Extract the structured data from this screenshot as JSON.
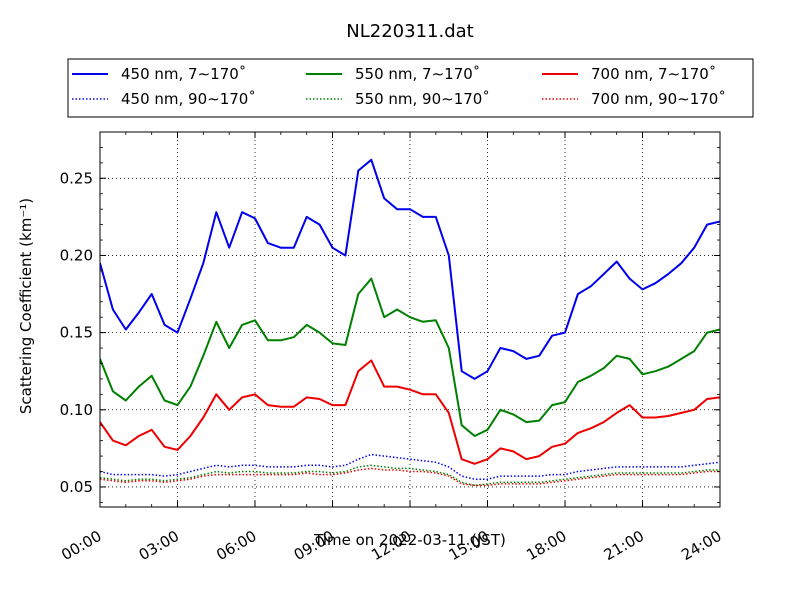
{
  "chart_data": {
    "type": "line",
    "title": "NL220311.dat",
    "xlabel": "Time on 2022-03-11 (JST)",
    "ylabel": "Scattering Coefficient (km⁻¹)",
    "xlim": [
      0,
      24
    ],
    "ylim": [
      0.037,
      0.28
    ],
    "grid": true,
    "legend_position": "top, above plot, 3 columns",
    "x_ticks": [
      0,
      3,
      6,
      9,
      12,
      15,
      18,
      21,
      24
    ],
    "x_tick_labels": [
      "00:00",
      "03:00",
      "06:00",
      "09:00",
      "12:00",
      "15:00",
      "18:00",
      "21:00",
      "24:00"
    ],
    "y_ticks": [
      0.05,
      0.1,
      0.15,
      0.2,
      0.25
    ],
    "y_tick_labels": [
      "0.05",
      "0.10",
      "0.15",
      "0.20",
      "0.25"
    ],
    "x": [
      0,
      0.5,
      1,
      1.5,
      2,
      2.5,
      3,
      3.5,
      4,
      4.5,
      5,
      5.5,
      6,
      6.5,
      7,
      7.5,
      8,
      8.5,
      9,
      9.5,
      10,
      10.5,
      11,
      11.5,
      12,
      12.5,
      13,
      13.5,
      14,
      14.5,
      15,
      15.5,
      16,
      16.5,
      17,
      17.5,
      18,
      18.5,
      19,
      19.5,
      20,
      20.5,
      21,
      21.5,
      22,
      22.5,
      23,
      23.5,
      24
    ],
    "series": [
      {
        "name": "450 nm, 7∼170˚",
        "color": "#0000ee",
        "style": "solid",
        "values": [
          0.195,
          0.165,
          0.152,
          0.163,
          0.175,
          0.155,
          0.15,
          0.172,
          0.195,
          0.228,
          0.205,
          0.228,
          0.224,
          0.208,
          0.205,
          0.205,
          0.225,
          0.22,
          0.205,
          0.2,
          0.255,
          0.262,
          0.237,
          0.23,
          0.23,
          0.225,
          0.225,
          0.2,
          0.125,
          0.12,
          0.125,
          0.14,
          0.138,
          0.133,
          0.135,
          0.148,
          0.15,
          0.175,
          0.18,
          0.188,
          0.196,
          0.185,
          0.178,
          0.182,
          0.188,
          0.195,
          0.205,
          0.22,
          0.222
        ]
      },
      {
        "name": "450 nm, 90∼170˚",
        "color": "#0000ee",
        "style": "dotted",
        "values": [
          0.06,
          0.058,
          0.058,
          0.058,
          0.058,
          0.057,
          0.058,
          0.06,
          0.062,
          0.064,
          0.063,
          0.064,
          0.064,
          0.063,
          0.063,
          0.063,
          0.064,
          0.064,
          0.063,
          0.064,
          0.068,
          0.071,
          0.07,
          0.069,
          0.068,
          0.067,
          0.066,
          0.063,
          0.057,
          0.055,
          0.055,
          0.057,
          0.057,
          0.057,
          0.057,
          0.058,
          0.058,
          0.06,
          0.061,
          0.062,
          0.063,
          0.063,
          0.063,
          0.063,
          0.063,
          0.063,
          0.064,
          0.065,
          0.066
        ]
      },
      {
        "name": "550 nm, 7∼170˚",
        "color": "#008000",
        "style": "solid",
        "values": [
          0.133,
          0.112,
          0.106,
          0.115,
          0.122,
          0.106,
          0.103,
          0.115,
          0.135,
          0.157,
          0.14,
          0.155,
          0.158,
          0.145,
          0.145,
          0.147,
          0.155,
          0.15,
          0.143,
          0.142,
          0.175,
          0.185,
          0.16,
          0.165,
          0.16,
          0.157,
          0.158,
          0.14,
          0.09,
          0.083,
          0.087,
          0.1,
          0.097,
          0.092,
          0.093,
          0.103,
          0.105,
          0.118,
          0.122,
          0.127,
          0.135,
          0.133,
          0.123,
          0.125,
          0.128,
          0.133,
          0.138,
          0.15,
          0.152
        ]
      },
      {
        "name": "550 nm, 90∼170˚",
        "color": "#008000",
        "style": "dotted",
        "values": [
          0.056,
          0.055,
          0.054,
          0.055,
          0.055,
          0.054,
          0.055,
          0.056,
          0.058,
          0.06,
          0.059,
          0.06,
          0.06,
          0.059,
          0.059,
          0.059,
          0.06,
          0.06,
          0.059,
          0.06,
          0.063,
          0.064,
          0.063,
          0.062,
          0.062,
          0.061,
          0.06,
          0.058,
          0.053,
          0.051,
          0.052,
          0.053,
          0.053,
          0.053,
          0.053,
          0.054,
          0.055,
          0.056,
          0.057,
          0.058,
          0.059,
          0.059,
          0.059,
          0.059,
          0.059,
          0.059,
          0.06,
          0.061,
          0.061
        ]
      },
      {
        "name": "700 nm, 7∼170˚",
        "color": "#ee0000",
        "style": "solid",
        "values": [
          0.092,
          0.08,
          0.077,
          0.083,
          0.087,
          0.076,
          0.074,
          0.083,
          0.095,
          0.11,
          0.1,
          0.108,
          0.11,
          0.103,
          0.102,
          0.102,
          0.108,
          0.107,
          0.103,
          0.103,
          0.125,
          0.132,
          0.115,
          0.115,
          0.113,
          0.11,
          0.11,
          0.098,
          0.068,
          0.065,
          0.068,
          0.075,
          0.073,
          0.068,
          0.07,
          0.076,
          0.078,
          0.085,
          0.088,
          0.092,
          0.098,
          0.103,
          0.095,
          0.095,
          0.096,
          0.098,
          0.1,
          0.107,
          0.108
        ]
      },
      {
        "name": "700 nm, 90∼170˚",
        "color": "#ee0000",
        "style": "dotted",
        "values": [
          0.055,
          0.054,
          0.053,
          0.054,
          0.054,
          0.053,
          0.054,
          0.055,
          0.057,
          0.058,
          0.058,
          0.058,
          0.058,
          0.058,
          0.058,
          0.058,
          0.059,
          0.058,
          0.058,
          0.059,
          0.061,
          0.062,
          0.061,
          0.061,
          0.06,
          0.06,
          0.059,
          0.057,
          0.052,
          0.051,
          0.051,
          0.052,
          0.052,
          0.052,
          0.052,
          0.053,
          0.054,
          0.055,
          0.056,
          0.057,
          0.058,
          0.058,
          0.058,
          0.058,
          0.058,
          0.058,
          0.059,
          0.06,
          0.06
        ]
      }
    ]
  }
}
